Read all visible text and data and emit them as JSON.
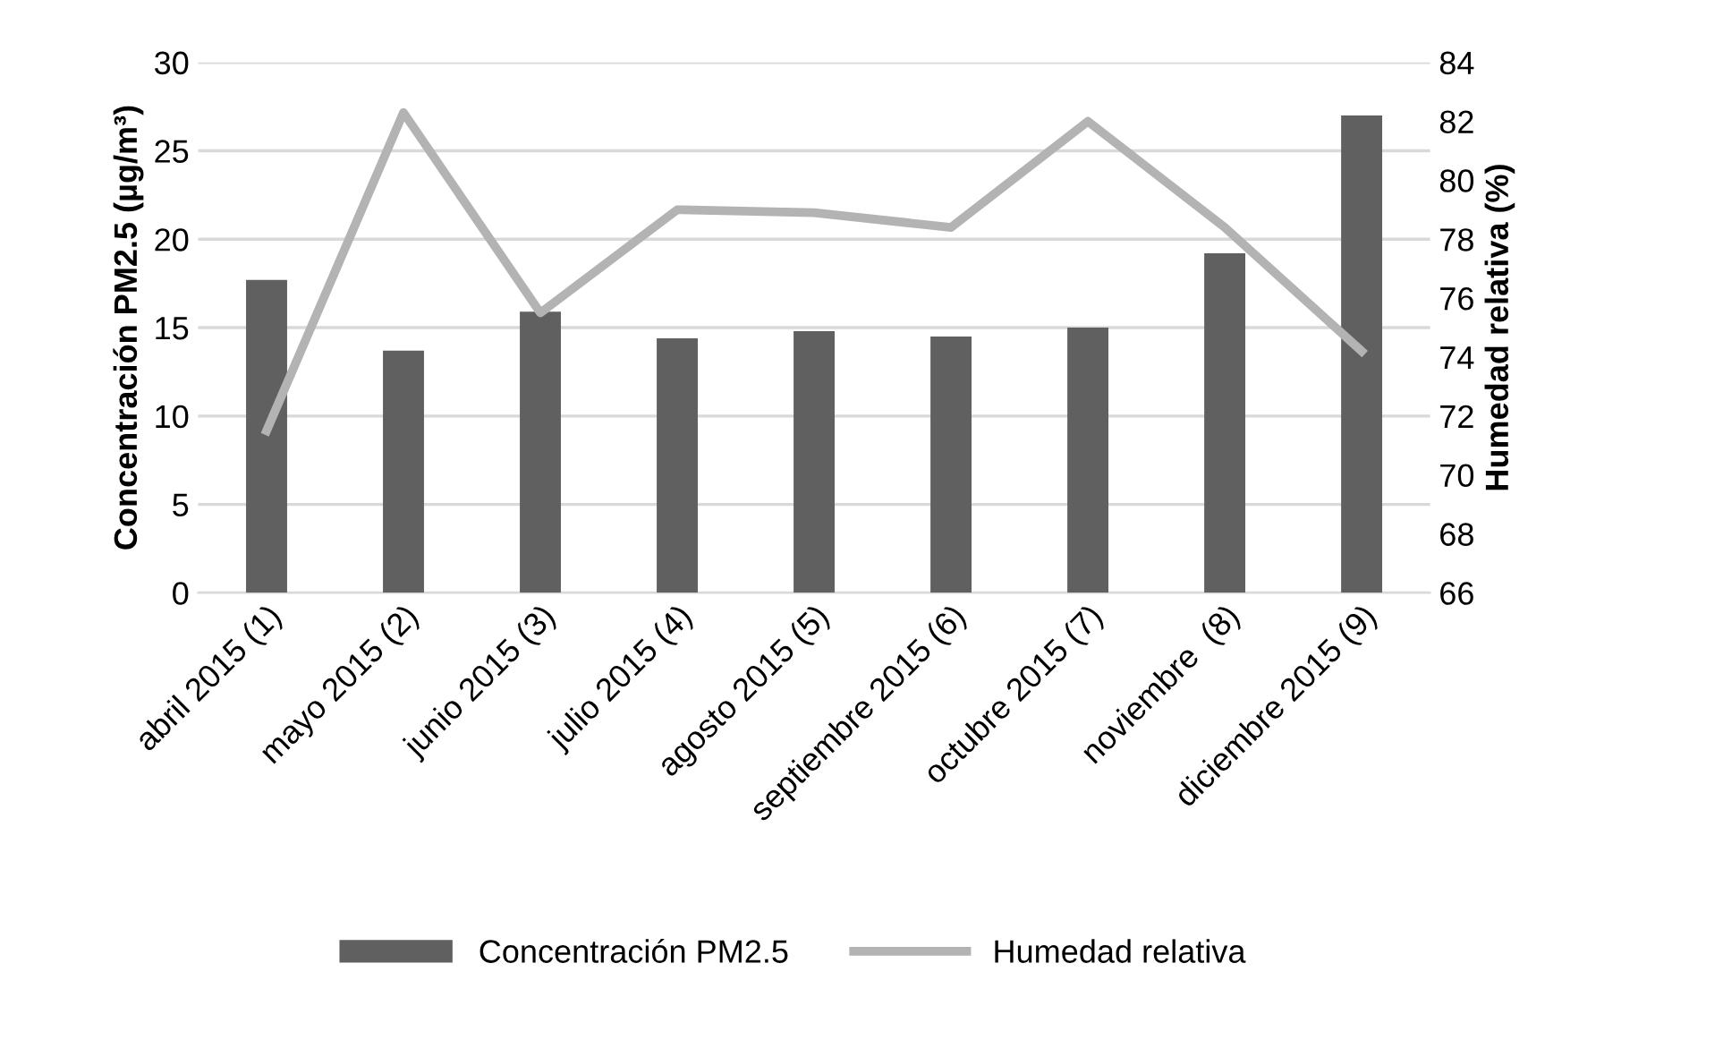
{
  "chart_data": {
    "type": "bar",
    "categories": [
      "abril 2015 (1)",
      "mayo 2015 (2)",
      "junio 2015 (3)",
      "julio 2015 (4)",
      "agosto 2015 (5)",
      "septiembre 2015 (6)",
      "octubre 2015 (7)",
      "noviembre  (8)",
      "diciembre 2015 (9)"
    ],
    "series": [
      {
        "name": "Concentración PM2.5",
        "color": "#606060",
        "values": [
          17.7,
          13.7,
          15.9,
          14.4,
          14.8,
          14.5,
          15.0,
          19.2,
          27.0
        ]
      },
      {
        "name": "Humedad relativa",
        "type": "line",
        "axis": "y2",
        "color": "#b3b3b3",
        "values": [
          71.5,
          82.3,
          75.5,
          79.0,
          78.9,
          78.4,
          82.0,
          78.4,
          74.2
        ]
      }
    ],
    "ylabel": "Concentración PM2.5 (µg/m³)",
    "y2label": "Humedad relativa (%)",
    "ylim": [
      0,
      30
    ],
    "yticks": [
      0,
      5,
      10,
      15,
      20,
      25,
      30
    ],
    "y2lim": [
      66,
      84
    ],
    "y2ticks": [
      66,
      68,
      70,
      72,
      74,
      76,
      78,
      80,
      82,
      84
    ],
    "grid": "y",
    "legend": "bottom",
    "marker": "none",
    "line_style": "solid"
  }
}
